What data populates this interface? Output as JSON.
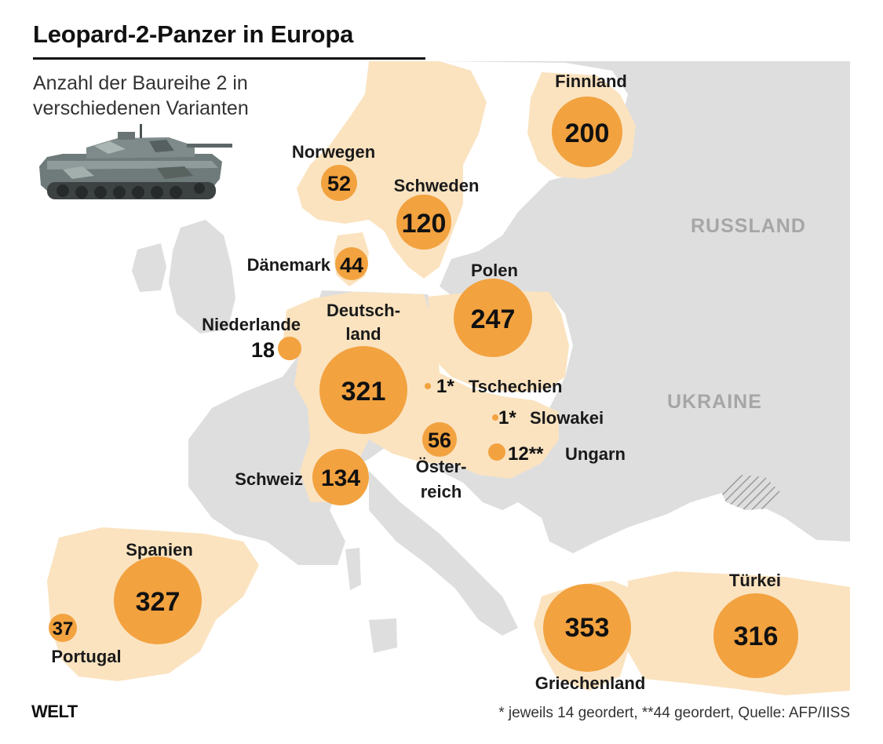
{
  "header": {
    "title": "Leopard-2-Panzer in Europa",
    "subtitle_lines": [
      "Anzahl der Baureihe 2 in",
      "verschiedenen Varianten"
    ]
  },
  "colors": {
    "highlight_land": "#fbe3c0",
    "other_land": "#dedede",
    "sea": "#ffffff",
    "bubble": "#f2a23f",
    "text": "#1a1a1a",
    "region_label": "#a6a6a6"
  },
  "map": {
    "region_labels": [
      {
        "id": "russland",
        "text": "RUSSLAND"
      },
      {
        "id": "ukraine",
        "text": "UKRAINE"
      }
    ],
    "countries": [
      {
        "id": "finnland",
        "label": [
          "Finnland"
        ],
        "value": "200",
        "count": 200
      },
      {
        "id": "norwegen",
        "label": [
          "Norwegen"
        ],
        "value": "52",
        "count": 52
      },
      {
        "id": "schweden",
        "label": [
          "Schweden"
        ],
        "value": "120",
        "count": 120
      },
      {
        "id": "daenemark",
        "label": [
          "Dänemark"
        ],
        "value": "44",
        "count": 44
      },
      {
        "id": "polen",
        "label": [
          "Polen"
        ],
        "value": "247",
        "count": 247
      },
      {
        "id": "niederlande",
        "label": [
          "Niederlande"
        ],
        "value": "18",
        "count": 18
      },
      {
        "id": "deutschland",
        "label": [
          "Deutsch-",
          "land"
        ],
        "value": "321",
        "count": 321
      },
      {
        "id": "tschechien",
        "label": [
          "Tschechien"
        ],
        "value": "1*",
        "count": 1
      },
      {
        "id": "slowakei",
        "label": [
          "Slowakei"
        ],
        "value": "1*",
        "count": 1
      },
      {
        "id": "ungarn",
        "label": [
          "Ungarn"
        ],
        "value": "12**",
        "count": 12
      },
      {
        "id": "oesterreich",
        "label": [
          "Öster-",
          "reich"
        ],
        "value": "56",
        "count": 56
      },
      {
        "id": "schweiz",
        "label": [
          "Schweiz"
        ],
        "value": "134",
        "count": 134
      },
      {
        "id": "spanien",
        "label": [
          "Spanien"
        ],
        "value": "327",
        "count": 327
      },
      {
        "id": "portugal",
        "label": [
          "Portugal"
        ],
        "value": "37",
        "count": 37
      },
      {
        "id": "griechenland",
        "label": [
          "Griechenland"
        ],
        "value": "353",
        "count": 353
      },
      {
        "id": "tuerkei",
        "label": [
          "Türkei"
        ],
        "value": "316",
        "count": 316
      }
    ]
  },
  "footer": {
    "logo": "WELT",
    "footnote": "* jeweils 14 geordert, **44 geordert, Quelle: AFP/IISS"
  }
}
